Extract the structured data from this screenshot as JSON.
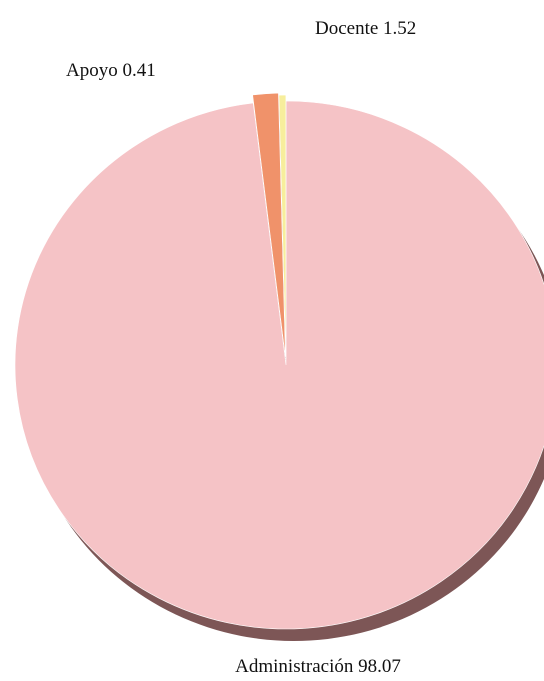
{
  "chart_data": {
    "type": "pie",
    "title": "",
    "exploded": true,
    "shadow": true,
    "slices": [
      {
        "label": "Administración",
        "value": 98.07,
        "display": "Administración  98.07",
        "color": "#f5c3c6"
      },
      {
        "label": "Docente",
        "value": 1.52,
        "display": "Docente 1.52",
        "color": "#f0926a"
      },
      {
        "label": "Apoyo",
        "value": 0.41,
        "display": "Apoyo  0.41",
        "color": "#f7ee9c"
      }
    ],
    "shadow_color": "#7d5656"
  }
}
